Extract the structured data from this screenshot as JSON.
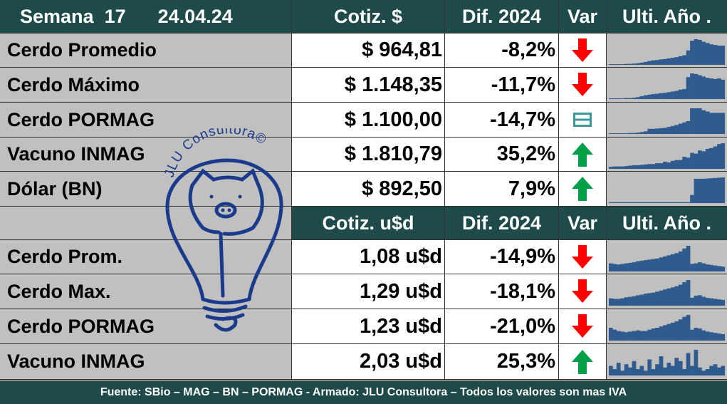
{
  "header": {
    "week_label": "Semana",
    "week": "17",
    "date": "24.04.24",
    "col1": "Cotiz. $",
    "col2": "Dif. 2024",
    "col3": "Var",
    "col4": "Ulti. Año ."
  },
  "rows_ars": [
    {
      "label": "Cerdo Promedio",
      "value": "$ 964,81",
      "diff": "-8,2%",
      "var": "down",
      "spark": [
        2,
        2,
        2,
        2,
        3,
        3,
        4,
        5,
        7,
        9,
        12,
        14,
        15,
        17,
        18,
        20,
        22,
        24,
        27,
        30,
        45,
        75,
        80,
        78,
        72,
        68,
        64,
        62,
        60,
        60
      ]
    },
    {
      "label": "Cerdo Máximo",
      "value": "$ 1.148,35",
      "diff": "-11,7%",
      "var": "down",
      "spark": [
        2,
        2,
        2,
        2,
        3,
        3,
        4,
        6,
        9,
        12,
        14,
        16,
        17,
        19,
        20,
        22,
        24,
        26,
        30,
        32,
        70,
        82,
        80,
        76,
        72,
        68,
        66,
        64,
        66,
        62
      ]
    },
    {
      "label": "Cerdo PORMAG",
      "value": "$ 1.100,00",
      "diff": "-14,7%",
      "var": "equal",
      "spark": [
        2,
        2,
        2,
        2,
        2,
        3,
        3,
        4,
        6,
        8,
        16,
        16,
        17,
        18,
        19,
        22,
        25,
        28,
        32,
        36,
        40,
        80,
        80,
        80,
        74,
        70,
        66,
        66,
        66,
        66
      ]
    },
    {
      "label": "Vacuno INMAG",
      "value": "$ 1.810,79",
      "diff": "35,2%",
      "var": "up",
      "spark": [
        5,
        6,
        6,
        6,
        7,
        8,
        9,
        9,
        10,
        11,
        12,
        12,
        14,
        14,
        18,
        16,
        20,
        22,
        22,
        30,
        28,
        40,
        38,
        46,
        44,
        50,
        52,
        56,
        62,
        64
      ]
    },
    {
      "label": "Dólar (BN)",
      "value": "$ 892,50",
      "diff": "7,9%",
      "var": "up",
      "spark": [
        3,
        3,
        3,
        3,
        3,
        3,
        3,
        3,
        3,
        3,
        3,
        3,
        3,
        3,
        3,
        3,
        3,
        3,
        3,
        3,
        3,
        30,
        90,
        90,
        90,
        91,
        92,
        93,
        94,
        95
      ]
    }
  ],
  "header2": {
    "col1": "Cotiz. u$d",
    "col2": "Dif. 2024",
    "col3": "Var",
    "col4": "Ulti. Año ."
  },
  "rows_usd": [
    {
      "label": "Cerdo Prom.",
      "value": "1,08 u$d",
      "diff": "-14,9%",
      "var": "down",
      "spark": [
        30,
        28,
        26,
        28,
        30,
        32,
        34,
        38,
        40,
        42,
        44,
        46,
        48,
        52,
        56,
        60,
        64,
        68,
        74,
        85,
        95,
        28,
        30,
        34,
        30,
        26,
        24,
        22,
        20,
        18
      ]
    },
    {
      "label": "Cerdo Max.",
      "value": "1,29 u$d",
      "diff": "-18,1%",
      "var": "down",
      "spark": [
        28,
        26,
        26,
        28,
        32,
        34,
        36,
        40,
        42,
        46,
        48,
        50,
        54,
        58,
        62,
        66,
        70,
        74,
        80,
        90,
        98,
        30,
        38,
        40,
        34,
        30,
        28,
        26,
        24,
        22
      ]
    },
    {
      "label": "Cerdo PORMAG",
      "value": "1,23 u$d",
      "diff": "-21,0%",
      "var": "down",
      "spark": [
        40,
        34,
        30,
        28,
        26,
        28,
        30,
        32,
        30,
        30,
        34,
        38,
        40,
        44,
        48,
        52,
        56,
        60,
        66,
        74,
        80,
        34,
        40,
        38,
        32,
        28,
        26,
        24,
        22,
        20
      ]
    },
    {
      "label": "Vacuno INMAG",
      "value": "2,03 u$d",
      "diff": "25,3%",
      "var": "up",
      "spark": [
        30,
        20,
        40,
        15,
        35,
        25,
        45,
        20,
        30,
        15,
        50,
        20,
        35,
        60,
        25,
        40,
        30,
        55,
        45,
        20,
        70,
        30,
        80,
        25,
        15,
        20,
        30,
        35,
        25,
        30
      ]
    }
  ],
  "footer": "Fuente: SBio – MAG – BN – PORMAG - Armado: JLU Consultora – Todos los valores son mas IVA",
  "logo": {
    "text": "JLU Consultora©"
  },
  "colors": {
    "header_bg": "#1f4a4a",
    "spark": "#2f5b8f",
    "down": "#ff0000",
    "up": "#00a04a",
    "equal": "#3a9a9a",
    "logo": "#1a3a8c"
  }
}
